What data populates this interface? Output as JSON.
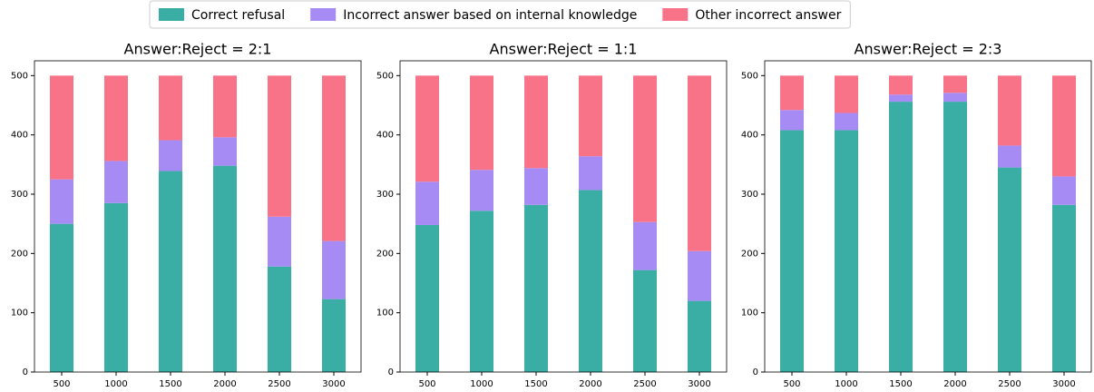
{
  "chart_data": [
    {
      "type": "bar",
      "stacked": true,
      "title": "Answer:Reject = 2:1",
      "categories": [
        500,
        1000,
        1500,
        2000,
        2500,
        3000
      ],
      "series": [
        {
          "name": "Correct refusal",
          "color": "#3aada5",
          "values": [
            250,
            285,
            339,
            348,
            178,
            123
          ]
        },
        {
          "name": "Incorrect answer based on internal knowledge",
          "color": "#a78bf5",
          "values": [
            75,
            71,
            52,
            48,
            84,
            98
          ]
        },
        {
          "name": "Other incorrect answer",
          "color": "#f87388",
          "values": [
            175,
            144,
            109,
            104,
            238,
            279
          ]
        }
      ],
      "ylim": [
        0,
        525
      ],
      "yticks": [
        0,
        100,
        200,
        300,
        400,
        500
      ]
    },
    {
      "type": "bar",
      "stacked": true,
      "title": "Answer:Reject = 1:1",
      "categories": [
        500,
        1000,
        1500,
        2000,
        2500,
        3000
      ],
      "series": [
        {
          "name": "Correct refusal",
          "color": "#3aada5",
          "values": [
            248,
            272,
            282,
            307,
            172,
            120
          ]
        },
        {
          "name": "Incorrect answer based on internal knowledge",
          "color": "#a78bf5",
          "values": [
            73,
            69,
            62,
            57,
            81,
            84
          ]
        },
        {
          "name": "Other incorrect answer",
          "color": "#f87388",
          "values": [
            179,
            159,
            156,
            136,
            247,
            296
          ]
        }
      ],
      "ylim": [
        0,
        525
      ],
      "yticks": [
        0,
        100,
        200,
        300,
        400,
        500
      ]
    },
    {
      "type": "bar",
      "stacked": true,
      "title": "Answer:Reject = 2:3",
      "categories": [
        500,
        1000,
        1500,
        2000,
        2500,
        3000
      ],
      "series": [
        {
          "name": "Correct refusal",
          "color": "#3aada5",
          "values": [
            408,
            408,
            456,
            456,
            345,
            282
          ]
        },
        {
          "name": "Incorrect answer based on internal knowledge",
          "color": "#a78bf5",
          "values": [
            34,
            29,
            12,
            15,
            37,
            48
          ]
        },
        {
          "name": "Other incorrect answer",
          "color": "#f87388",
          "values": [
            58,
            63,
            32,
            29,
            118,
            170
          ]
        }
      ],
      "ylim": [
        0,
        525
      ],
      "yticks": [
        0,
        100,
        200,
        300,
        400,
        500
      ]
    }
  ]
}
